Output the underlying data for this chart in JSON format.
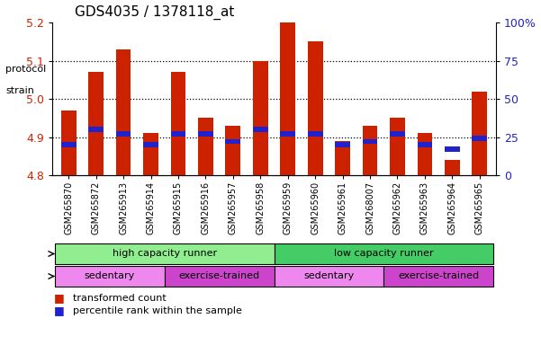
{
  "title": "GDS4035 / 1378118_at",
  "samples": [
    "GSM265870",
    "GSM265872",
    "GSM265913",
    "GSM265914",
    "GSM265915",
    "GSM265916",
    "GSM265957",
    "GSM265958",
    "GSM265959",
    "GSM265960",
    "GSM265961",
    "GSM268007",
    "GSM265962",
    "GSM265963",
    "GSM265964",
    "GSM265965"
  ],
  "red_values": [
    4.97,
    5.07,
    5.13,
    4.91,
    5.07,
    4.95,
    4.93,
    5.1,
    5.2,
    5.15,
    4.89,
    4.93,
    4.95,
    4.91,
    4.84,
    5.02
  ],
  "blue_values_pct": [
    20,
    30,
    27,
    20,
    27,
    27,
    22,
    30,
    27,
    27,
    20,
    22,
    27,
    20,
    17,
    24
  ],
  "ymin": 4.8,
  "ymax": 5.2,
  "yticks": [
    4.8,
    4.9,
    5.0,
    5.1,
    5.2
  ],
  "right_yticks": [
    0,
    25,
    50,
    75,
    100
  ],
  "right_yticklabels": [
    "0",
    "25",
    "50",
    "75",
    "100%"
  ],
  "bar_color": "#cc2200",
  "blue_color": "#2222cc",
  "tick_label_color_left": "#cc2200",
  "tick_label_color_right": "#2222cc",
  "strain_groups": [
    {
      "label": "high capacity runner",
      "start": 0,
      "end": 8,
      "color": "#90ee90"
    },
    {
      "label": "low capacity runner",
      "start": 8,
      "end": 16,
      "color": "#44cc66"
    }
  ],
  "protocol_groups": [
    {
      "label": "sedentary",
      "start": 0,
      "end": 4,
      "color": "#ee88ee"
    },
    {
      "label": "exercise-trained",
      "start": 4,
      "end": 8,
      "color": "#cc44cc"
    },
    {
      "label": "sedentary",
      "start": 8,
      "end": 12,
      "color": "#ee88ee"
    },
    {
      "label": "exercise-trained",
      "start": 12,
      "end": 16,
      "color": "#cc44cc"
    }
  ],
  "strain_label": "strain",
  "protocol_label": "protocol",
  "legend_red": "transformed count",
  "legend_blue": "percentile rank within the sample",
  "bar_width": 0.55,
  "bar_bottom": 4.8,
  "grid_yticks": [
    4.9,
    5.0,
    5.1
  ]
}
